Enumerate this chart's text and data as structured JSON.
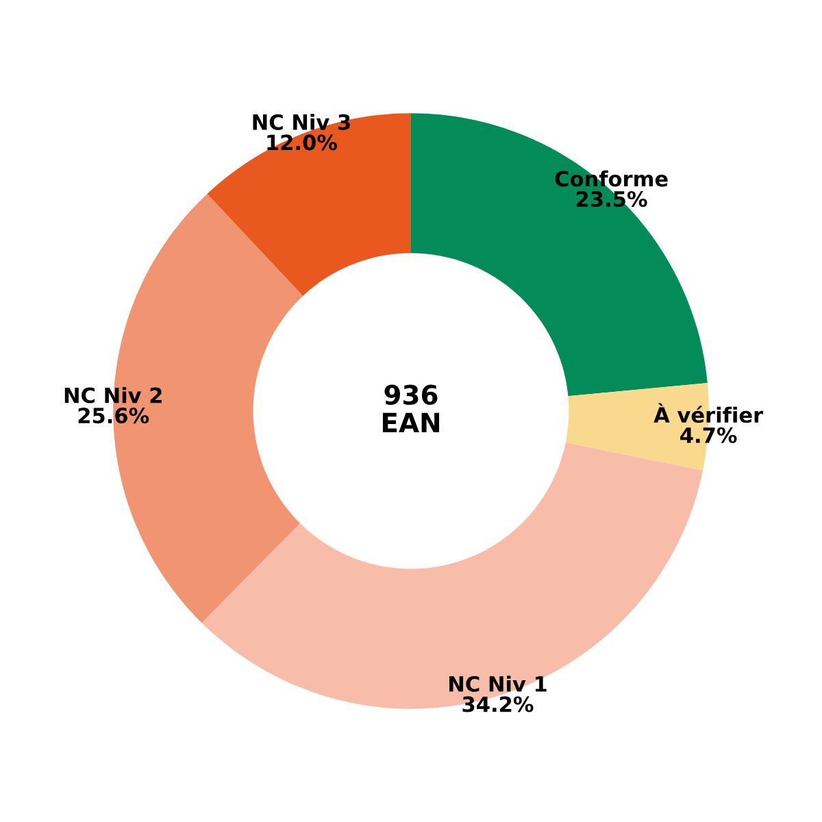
{
  "chart_data": {
    "type": "donut",
    "categories": [
      "Conforme",
      "À vérifier",
      "NC Niv 1",
      "NC Niv 2",
      "NC Niv 3"
    ],
    "values": [
      23.5,
      4.7,
      34.2,
      25.6,
      12.0
    ],
    "value_labels": [
      "23.5%",
      "4.7%",
      "34.2%",
      "25.6%",
      "12.0%"
    ],
    "colors": [
      "#038c5a",
      "#f8d98e",
      "#f8bda9",
      "#f19472",
      "#e8581f"
    ],
    "annotations": [
      "936\nEAN"
    ]
  }
}
